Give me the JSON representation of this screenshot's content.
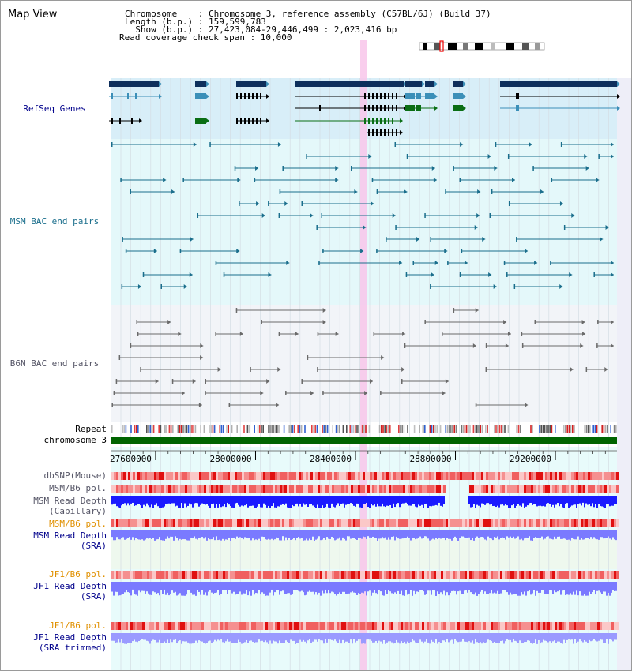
{
  "title": "Map View",
  "header": {
    "chromosome_label": "Chromosome    : Chromosome 3, reference assembly (C57BL/6J) (Build 37)",
    "length_label": "Length (b.p.) : 159,599,783",
    "show_label": "  Show (b.p.) : 27,423,084-29,446,499 : 2,023,416 bp",
    "coverage_label": "Read coverage check span : 10,000"
  },
  "tracks": {
    "refseq": "RefSeq Genes",
    "msm_bac": "MSM BAC end pairs",
    "b6n_bac": "B6N BAC end pairs",
    "repeat": "Repeat",
    "chromosome": "chromosome 3",
    "dbsnp": "dbSNP(Mouse)",
    "msm_b6_pol": "MSM/B6 pol.",
    "msm_read_depth_cap_1": "MSM Read Depth",
    "msm_read_depth_cap_2": "(Capillary)",
    "msm_b6_pol_sra": "MSM/B6 pol.",
    "msm_read_depth_sra_1": "MSM Read Depth",
    "msm_read_depth_sra_2": "(SRA)",
    "jf1_b6_pol": "JF1/B6 pol.",
    "jf1_read_depth_1": "JF1 Read Depth",
    "jf1_read_depth_2": "(SRA)",
    "jf1_b6_pol_trim": "JF1/B6 pol.",
    "jf1_read_depth_trim_1": "JF1 Read Depth",
    "jf1_read_depth_trim_2": "(SRA trimmed)"
  },
  "axis": {
    "ticks": [
      "27600000",
      "28000000",
      "28400000",
      "28800000",
      "29200000"
    ],
    "tick_values": [
      27600000,
      28000000,
      28400000,
      28800000,
      29200000
    ],
    "range": [
      27423084,
      29446499
    ]
  },
  "colors": {
    "refseq_bg": "#d8eef8",
    "msm_bg": "#e4f8fa",
    "b6n_bg": "#f2f4f8",
    "gene_dark": "#0e2f5c",
    "gene_mid": "#3b8fb8",
    "gene_black": "#000000",
    "gene_green": "#0a6e14",
    "msm_bac": "#1a6e8c",
    "b6n_bac": "#6a6a6a",
    "chromosome": "#006400",
    "highlight": "#f8c6ea",
    "label_blue": "#00008b",
    "label_teal": "#1a6e8c",
    "label_gray": "#555566",
    "label_orange": "#e09000",
    "depth_blue": "#1a1aff",
    "depth_light": "#7a7aff"
  }
}
